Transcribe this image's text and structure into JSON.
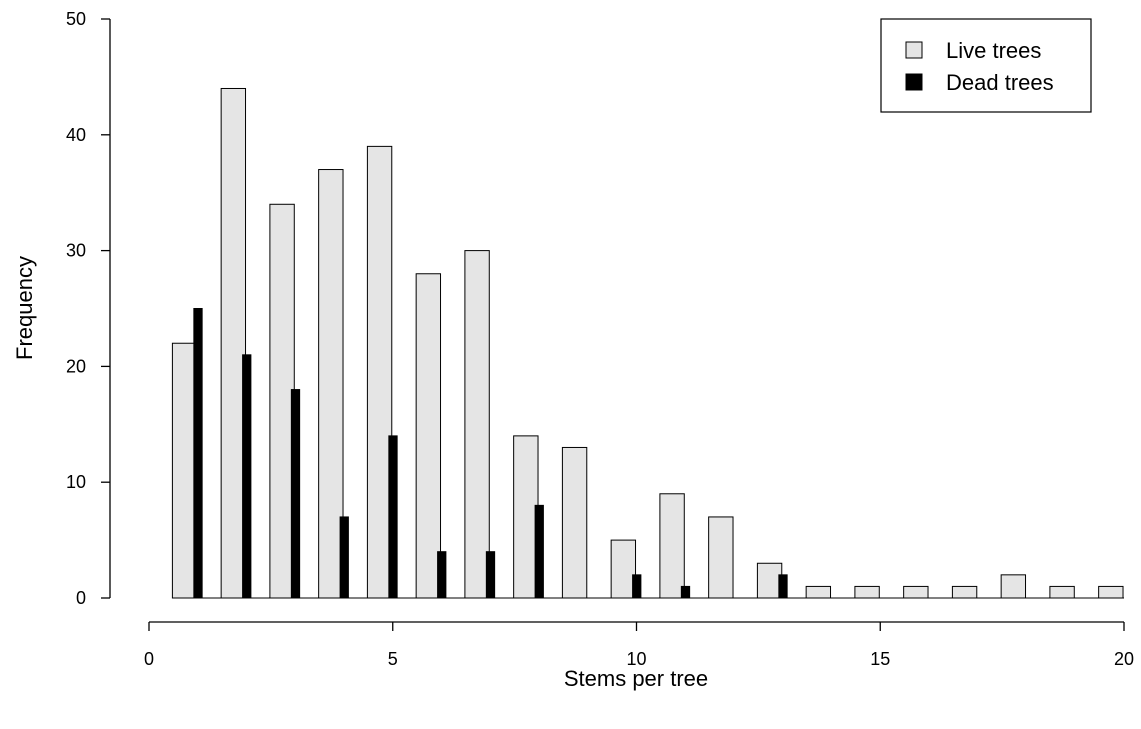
{
  "chart_data": {
    "type": "bar",
    "title": "",
    "xlabel": "Stems per tree",
    "ylabel": "Frequency",
    "xlim": [
      0,
      20
    ],
    "ylim": [
      0,
      50
    ],
    "x_ticks": [
      "0",
      "5",
      "10",
      "15",
      "20"
    ],
    "y_ticks": [
      "0",
      "10",
      "20",
      "30",
      "40",
      "50"
    ],
    "grid": false,
    "legend_position": "top-right",
    "series": [
      {
        "name": "Live trees",
        "color": "#e5e5e5",
        "x": [
          1,
          2,
          3,
          4,
          5,
          6,
          7,
          8,
          9,
          10,
          11,
          12,
          13,
          14,
          15,
          16,
          17,
          18,
          19,
          20
        ],
        "values": [
          22,
          44,
          34,
          37,
          39,
          28,
          30,
          14,
          13,
          5,
          9,
          7,
          3,
          1,
          1,
          1,
          1,
          2,
          1,
          1
        ]
      },
      {
        "name": "Dead trees",
        "color": "#000000",
        "x": [
          1,
          2,
          3,
          4,
          5,
          6,
          7,
          8,
          10,
          11,
          13
        ],
        "values": [
          25,
          21,
          18,
          7,
          14,
          4,
          4,
          8,
          2,
          1,
          2
        ]
      }
    ]
  }
}
